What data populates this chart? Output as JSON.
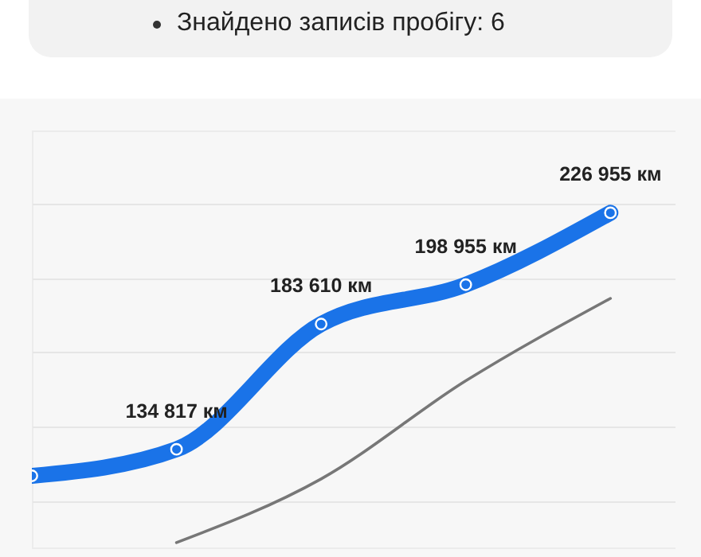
{
  "chart_data": {
    "type": "line",
    "annotations": [
      "Знайдено записів пробігу: 6"
    ],
    "categories": [
      null,
      null,
      null,
      null,
      null
    ],
    "series": [
      {
        "color": "#777777",
        "values": [
          null,
          98500,
          123300,
          161500,
          193600
        ]
      },
      {
        "color": "#1a73e8",
        "values": [
          124500,
          134817,
          183610,
          198955,
          226955
        ],
        "value_labels": [
          null,
          "134 817 км",
          "183 610 км",
          "198 955 км",
          "226 955 км"
        ],
        "marker": "circle"
      }
    ],
    "ylim": [
      96600,
      259000
    ],
    "yticks": [
      {
        "value": 114800,
        "label": null
      },
      {
        "value": 143700,
        "label": null
      },
      {
        "value": 172700,
        "label": null
      },
      {
        "value": 201600,
        "label": null
      },
      {
        "value": 230500,
        "label": null
      }
    ],
    "grid": "y"
  }
}
